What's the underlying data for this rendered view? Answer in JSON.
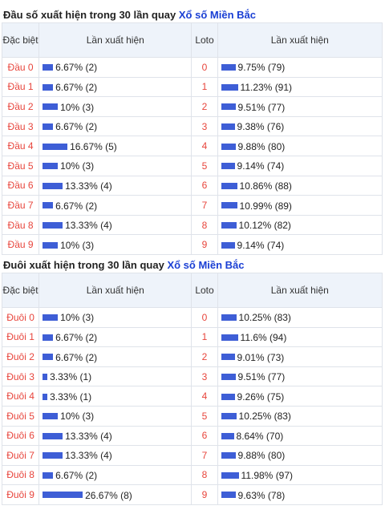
{
  "head_section": {
    "title_prefix": "Đầu số xuất hiện trong 30 lần quay",
    "title_link": "Xổ số Miền Bắc",
    "headers": {
      "special": "Đặc biệt",
      "times": "Lần xuất hiện",
      "loto": "Loto",
      "loto_times": "Lần xuất hiện"
    },
    "rows": [
      {
        "label": "Đầu 0",
        "pct": 6.67,
        "text": "6.67% (2)",
        "loto": "0",
        "loto_pct": 9.75,
        "loto_text": "9.75% (79)"
      },
      {
        "label": "Đầu 1",
        "pct": 6.67,
        "text": "6.67% (2)",
        "loto": "1",
        "loto_pct": 11.23,
        "loto_text": "11.23% (91)"
      },
      {
        "label": "Đầu 2",
        "pct": 10,
        "text": "10% (3)",
        "loto": "2",
        "loto_pct": 9.51,
        "loto_text": "9.51% (77)"
      },
      {
        "label": "Đầu 3",
        "pct": 6.67,
        "text": "6.67% (2)",
        "loto": "3",
        "loto_pct": 9.38,
        "loto_text": "9.38% (76)"
      },
      {
        "label": "Đầu 4",
        "pct": 16.67,
        "text": "16.67% (5)",
        "loto": "4",
        "loto_pct": 9.88,
        "loto_text": "9.88% (80)"
      },
      {
        "label": "Đầu 5",
        "pct": 10,
        "text": "10% (3)",
        "loto": "5",
        "loto_pct": 9.14,
        "loto_text": "9.14% (74)"
      },
      {
        "label": "Đầu 6",
        "pct": 13.33,
        "text": "13.33% (4)",
        "loto": "6",
        "loto_pct": 10.86,
        "loto_text": "10.86% (88)"
      },
      {
        "label": "Đầu 7",
        "pct": 6.67,
        "text": "6.67% (2)",
        "loto": "7",
        "loto_pct": 10.99,
        "loto_text": "10.99% (89)"
      },
      {
        "label": "Đầu 8",
        "pct": 13.33,
        "text": "13.33% (4)",
        "loto": "8",
        "loto_pct": 10.12,
        "loto_text": "10.12% (82)"
      },
      {
        "label": "Đầu 9",
        "pct": 10,
        "text": "10% (3)",
        "loto": "9",
        "loto_pct": 9.14,
        "loto_text": "9.14% (74)"
      }
    ]
  },
  "tail_section": {
    "title_prefix": "Đuôi xuất hiện trong 30 lần quay",
    "title_link": "Xổ số Miền Bắc",
    "headers": {
      "special": "Đặc biệt",
      "times": "Lần xuất hiện",
      "loto": "Loto",
      "loto_times": "Lần xuất hiện"
    },
    "rows": [
      {
        "label": "Đuôi 0",
        "pct": 10,
        "text": "10% (3)",
        "loto": "0",
        "loto_pct": 10.25,
        "loto_text": "10.25% (83)"
      },
      {
        "label": "Đuôi 1",
        "pct": 6.67,
        "text": "6.67% (2)",
        "loto": "1",
        "loto_pct": 11.6,
        "loto_text": "11.6% (94)"
      },
      {
        "label": "Đuôi 2",
        "pct": 6.67,
        "text": "6.67% (2)",
        "loto": "2",
        "loto_pct": 9.01,
        "loto_text": "9.01% (73)"
      },
      {
        "label": "Đuôi 3",
        "pct": 3.33,
        "text": "3.33% (1)",
        "loto": "3",
        "loto_pct": 9.51,
        "loto_text": "9.51% (77)"
      },
      {
        "label": "Đuôi 4",
        "pct": 3.33,
        "text": "3.33% (1)",
        "loto": "4",
        "loto_pct": 9.26,
        "loto_text": "9.26% (75)"
      },
      {
        "label": "Đuôi 5",
        "pct": 10,
        "text": "10% (3)",
        "loto": "5",
        "loto_pct": 10.25,
        "loto_text": "10.25% (83)"
      },
      {
        "label": "Đuôi 6",
        "pct": 13.33,
        "text": "13.33% (4)",
        "loto": "6",
        "loto_pct": 8.64,
        "loto_text": "8.64% (70)"
      },
      {
        "label": "Đuôi 7",
        "pct": 13.33,
        "text": "13.33% (4)",
        "loto": "7",
        "loto_pct": 9.88,
        "loto_text": "9.88% (80)"
      },
      {
        "label": "Đuôi 8",
        "pct": 6.67,
        "text": "6.67% (2)",
        "loto": "8",
        "loto_pct": 11.98,
        "loto_text": "11.98% (97)"
      },
      {
        "label": "Đuôi 9",
        "pct": 26.67,
        "text": "26.67% (8)",
        "loto": "9",
        "loto_pct": 9.63,
        "loto_text": "9.63% (78)"
      }
    ]
  },
  "colors": {
    "accent_red": "#e8453c",
    "bar_blue": "#3e5ed6",
    "link_blue": "#1a3fd4",
    "header_bg": "#eef3fa"
  }
}
